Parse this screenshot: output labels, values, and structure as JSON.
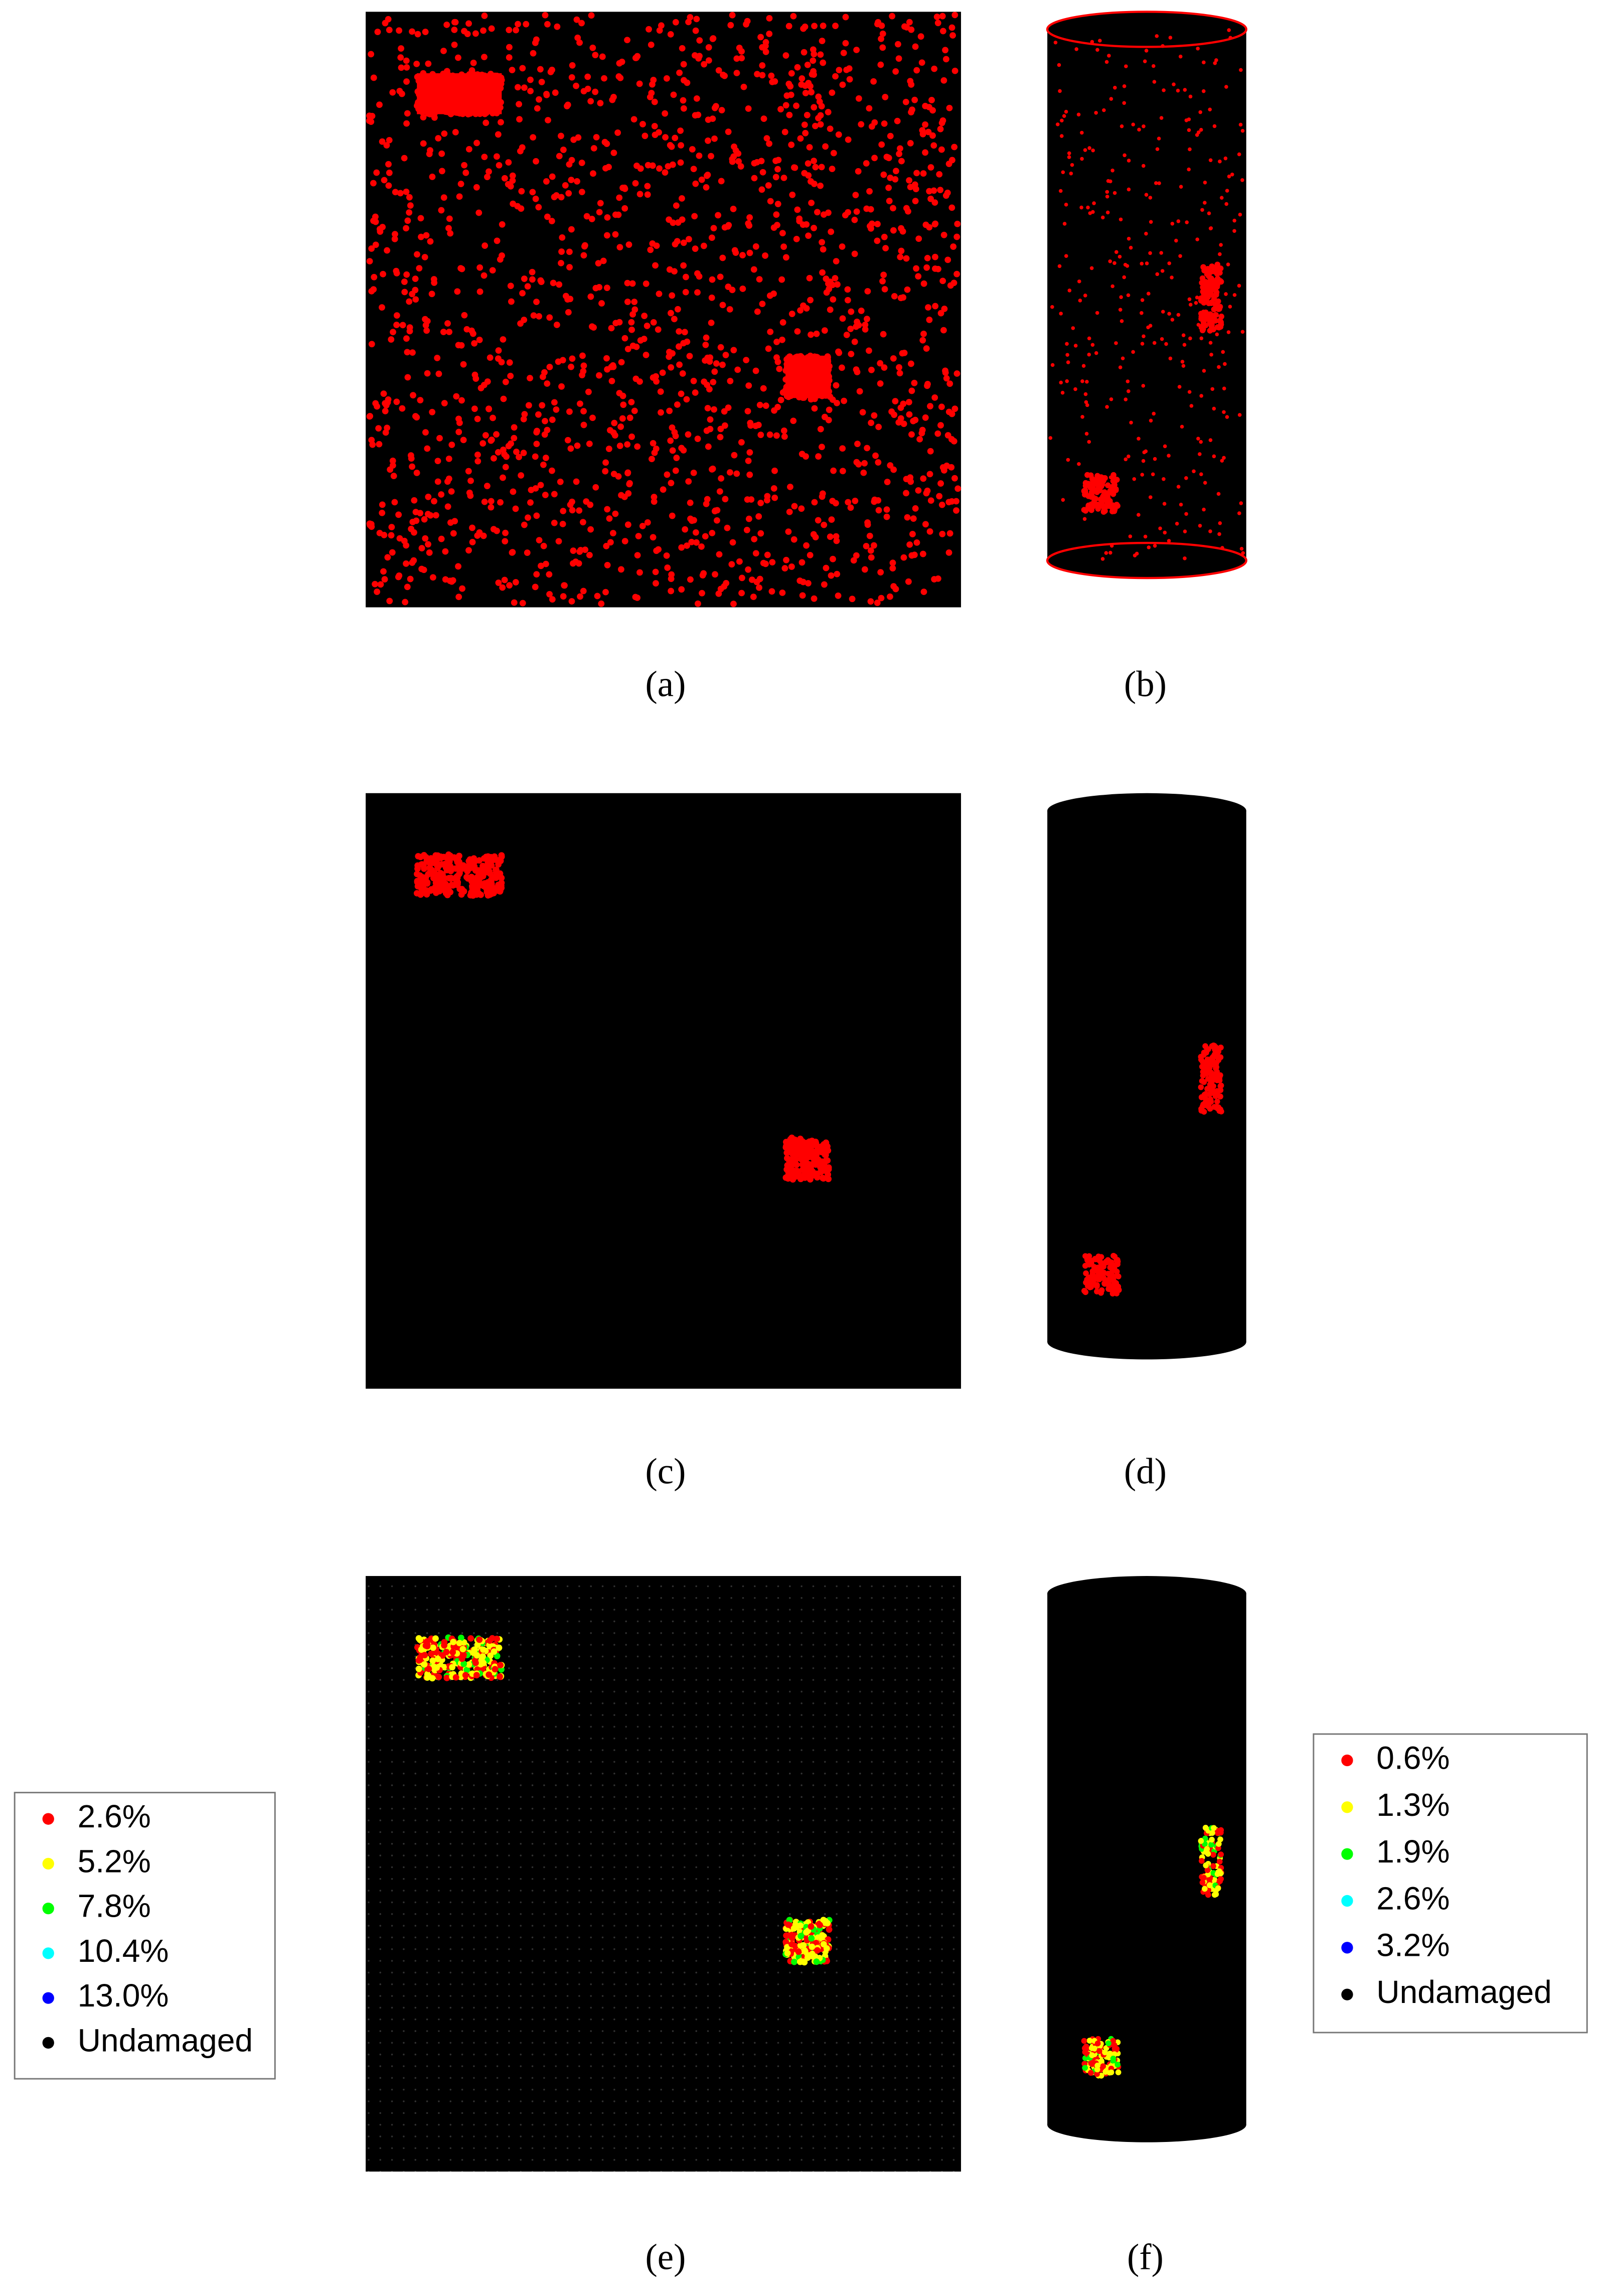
{
  "panels": [
    {
      "label": "(a)"
    },
    {
      "label": "(b)"
    },
    {
      "label": "(c)"
    },
    {
      "label": "(d)"
    },
    {
      "label": "(e)"
    },
    {
      "label": "(f)"
    }
  ],
  "legends": [
    {
      "items": [
        {
          "label": "2.6%",
          "color": "#ff0000"
        },
        {
          "label": "5.2%",
          "color": "#ffff00"
        },
        {
          "label": "7.8%",
          "color": "#00ff00"
        },
        {
          "label": "10.4%",
          "color": "#00ffff"
        },
        {
          "label": "13.0%",
          "color": "#0000ff"
        },
        {
          "label": "Undamaged",
          "color": "#000000"
        }
      ]
    },
    {
      "items": [
        {
          "label": "0.6%",
          "color": "#ff0000"
        },
        {
          "label": "1.3%",
          "color": "#ffff00"
        },
        {
          "label": "1.9%",
          "color": "#00ff00"
        },
        {
          "label": "2.6%",
          "color": "#00ffff"
        },
        {
          "label": "3.2%",
          "color": "#0000ff"
        },
        {
          "label": "Undamaged",
          "color": "#000000"
        }
      ]
    }
  ]
}
